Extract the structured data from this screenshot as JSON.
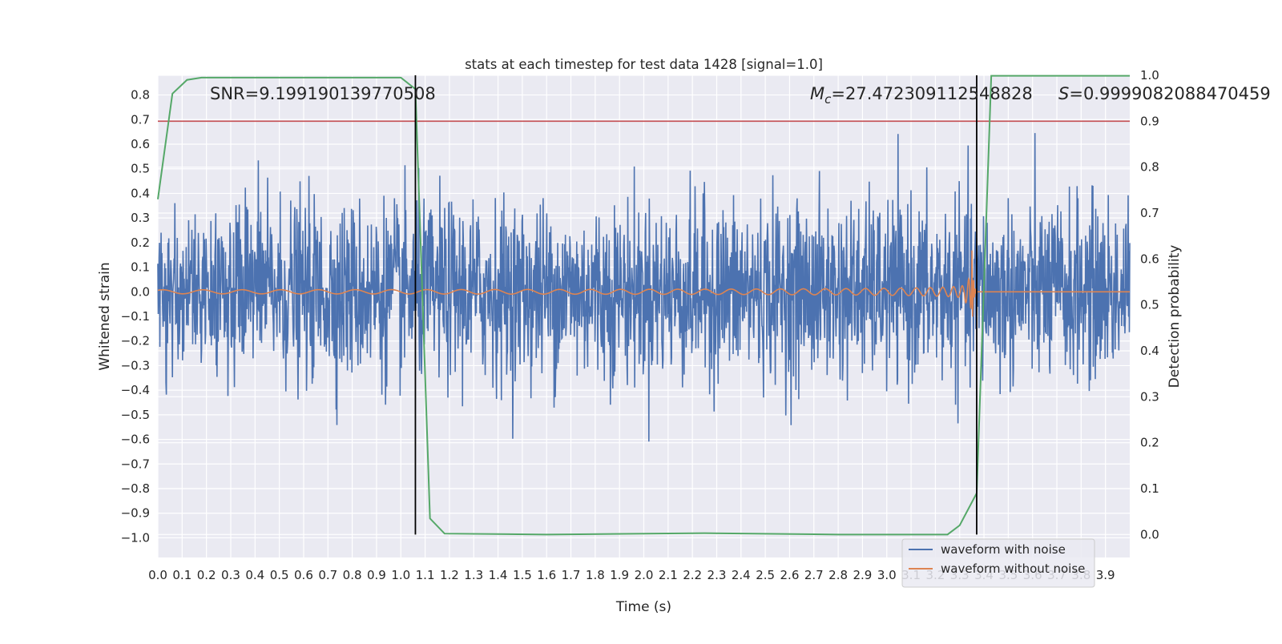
{
  "chart_data": {
    "type": "line",
    "title": "stats at each timestep for test data 1428 [signal=1.0]",
    "xlabel": "Time (s)",
    "ylabel_left": "Whitened strain",
    "ylabel_right": "Detection probability",
    "xlim": [
      0.0,
      4.0
    ],
    "ylim_left": [
      -1.08,
      0.88
    ],
    "ylim_right": [
      -0.05,
      1.0
    ],
    "grid": true,
    "xticks": [
      "0.0",
      "0.1",
      "0.2",
      "0.3",
      "0.4",
      "0.5",
      "0.6",
      "0.7",
      "0.8",
      "0.9",
      "1.0",
      "1.1",
      "1.2",
      "1.3",
      "1.4",
      "1.5",
      "1.6",
      "1.7",
      "1.8",
      "1.9",
      "2.0",
      "2.1",
      "2.2",
      "2.3",
      "2.4",
      "2.5",
      "2.6",
      "2.7",
      "2.8",
      "2.9",
      "3.0",
      "3.1",
      "3.2",
      "3.3",
      "3.4",
      "3.5",
      "3.6",
      "3.7",
      "3.8",
      "3.9"
    ],
    "yticks_left": [
      "0.8",
      "0.7",
      "0.6",
      "0.5",
      "0.4",
      "0.3",
      "0.2",
      "0.1",
      "0.0",
      "−0.1",
      "−0.2",
      "−0.3",
      "−0.4",
      "−0.5",
      "−0.6",
      "−0.7",
      "−0.8",
      "−0.9",
      "−1.0"
    ],
    "yticks_right": [
      "1.0",
      "0.9",
      "0.8",
      "0.7",
      "0.6",
      "0.5",
      "0.4",
      "0.3",
      "0.2",
      "0.1",
      "0.0"
    ],
    "annotations": {
      "snr": "SNR=9.199190139770508",
      "mc_prefix": "M",
      "mc_sub": "c",
      "mc_value": "=27.472309112548828",
      "s_label": "S",
      "s_value": "=0.9999082088470459"
    },
    "legend": {
      "placement": "lower-right",
      "entries": [
        "waveform with noise",
        "waveform without noise"
      ]
    },
    "colors": {
      "noisy": "#4c72b0",
      "clean": "#dd8452",
      "probability": "#55a868",
      "threshold": "#c44e52",
      "markers": "#000000",
      "background": "#eaeaf2",
      "grid": "#ffffff"
    },
    "threshold_probability": 0.9,
    "vertical_markers_x": [
      1.06,
      3.37
    ],
    "signal_merger_time": 3.35,
    "detection_probability": {
      "x": [
        0.0,
        0.06,
        0.12,
        0.18,
        1.0,
        1.06,
        1.12,
        1.18,
        1.6,
        2.25,
        2.8,
        3.1,
        3.25,
        3.3,
        3.37,
        3.43,
        4.0
      ],
      "y": [
        0.73,
        0.96,
        0.99,
        0.995,
        0.995,
        0.97,
        0.035,
        0.002,
        0.0,
        0.003,
        0.0,
        0.0,
        0.0,
        0.02,
        0.09,
        0.999,
        0.999
      ]
    },
    "noisy_waveform": {
      "description_range": [
        -1.0,
        0.8
      ],
      "typical_amplitude": 0.3
    }
  }
}
